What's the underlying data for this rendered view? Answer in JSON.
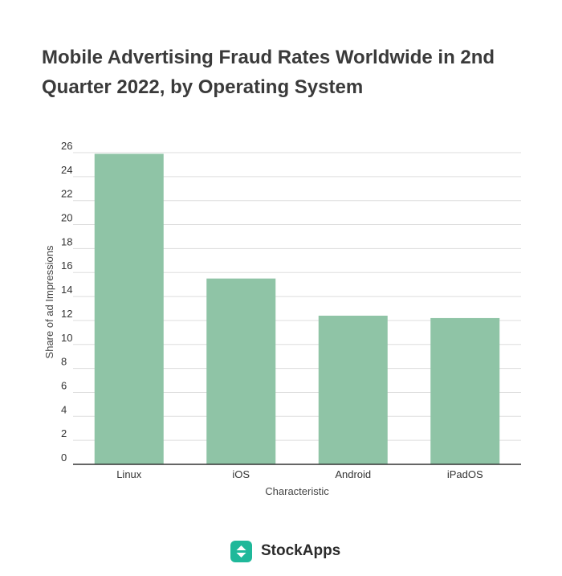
{
  "chart_data": {
    "type": "bar",
    "title": "Mobile Advertising Fraud Rates Worldwide in 2nd Quarter 2022, by Operating System",
    "xlabel": "Characteristic",
    "ylabel": "Share of ad Impressions",
    "categories": [
      "Linux",
      "iOS",
      "Android",
      "iPadOS"
    ],
    "values": [
      25.9,
      15.5,
      12.4,
      12.2
    ],
    "ylim": [
      0,
      26
    ],
    "yticks": [
      0,
      2,
      4,
      6,
      8,
      10,
      12,
      14,
      16,
      18,
      20,
      22,
      24,
      26
    ],
    "grid": true,
    "bar_color": "#8fc4a6",
    "grid_color": "#dddddd",
    "axis_color": "#333333"
  },
  "brand": {
    "name": "StockApps",
    "icon": "stockapps-logo-icon",
    "color": "#1fb89a"
  }
}
